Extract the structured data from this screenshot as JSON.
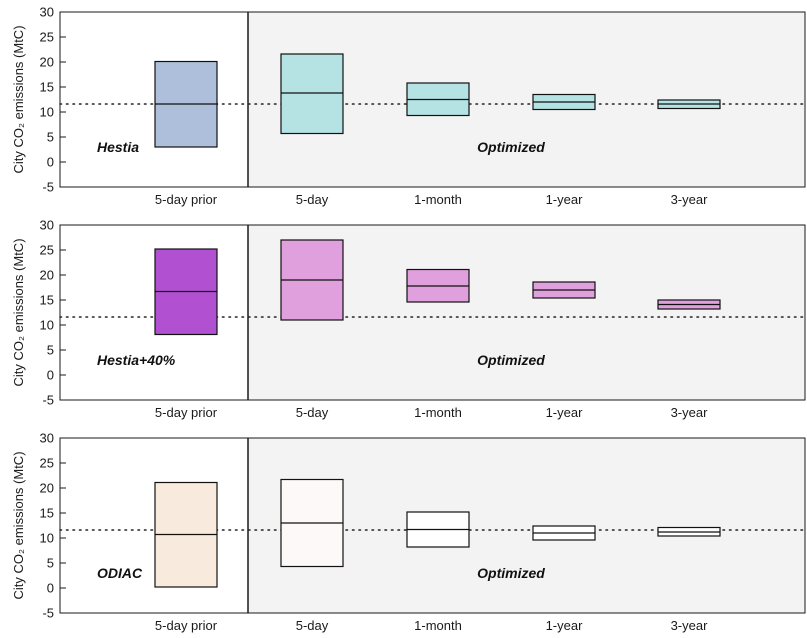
{
  "chart_data": [
    {
      "type": "box",
      "panel_label": "Hestia",
      "optimized_label": "Optimized",
      "ylabel": "City CO₂ emissions (MtC)",
      "ylim": [
        -5,
        30
      ],
      "yticks": [
        -5,
        0,
        5,
        10,
        15,
        20,
        25,
        30
      ],
      "reference_line": 11.6,
      "categories": [
        "5-day prior",
        "5-day",
        "1-month",
        "1-year",
        "3-year"
      ],
      "boxes": [
        {
          "low": 3.0,
          "median": 11.6,
          "high": 20.1,
          "color": "#aebfdb"
        },
        {
          "low": 5.7,
          "median": 13.8,
          "high": 21.6,
          "color": "#b5e3e3"
        },
        {
          "low": 9.3,
          "median": 12.5,
          "high": 15.8,
          "color": "#b5e3e3"
        },
        {
          "low": 10.5,
          "median": 12.0,
          "high": 13.5,
          "color": "#b5e3e3"
        },
        {
          "low": 10.7,
          "median": 11.6,
          "high": 12.4,
          "color": "#b5e3e3"
        }
      ]
    },
    {
      "type": "box",
      "panel_label": "Hestia+40%",
      "optimized_label": "Optimized",
      "ylabel": "City CO₂ emissions (MtC)",
      "ylim": [
        -5,
        30
      ],
      "yticks": [
        -5,
        0,
        5,
        10,
        15,
        20,
        25,
        30
      ],
      "reference_line": 11.6,
      "categories": [
        "5-day prior",
        "5-day",
        "1-month",
        "1-year",
        "3-year"
      ],
      "boxes": [
        {
          "low": 8.1,
          "median": 16.7,
          "high": 25.2,
          "color": "#b150d0"
        },
        {
          "low": 11.0,
          "median": 19.0,
          "high": 27.0,
          "color": "#dfa0dd"
        },
        {
          "low": 14.6,
          "median": 17.8,
          "high": 21.1,
          "color": "#dfa0dd"
        },
        {
          "low": 15.4,
          "median": 17.0,
          "high": 18.6,
          "color": "#dfa0dd"
        },
        {
          "low": 13.2,
          "median": 14.1,
          "high": 15.0,
          "color": "#dfa0dd"
        }
      ]
    },
    {
      "type": "box",
      "panel_label": "ODIAC",
      "optimized_label": "Optimized",
      "ylabel": "City CO₂ emissions (MtC)",
      "ylim": [
        -5,
        30
      ],
      "yticks": [
        -5,
        0,
        5,
        10,
        15,
        20,
        25,
        30
      ],
      "reference_line": 11.6,
      "categories": [
        "5-day prior",
        "5-day",
        "1-month",
        "1-year",
        "3-year"
      ],
      "boxes": [
        {
          "low": 0.2,
          "median": 10.7,
          "high": 21.1,
          "color": "#f8eadc"
        },
        {
          "low": 4.3,
          "median": 13.0,
          "high": 21.7,
          "color": "#fdf9f8"
        },
        {
          "low": 8.2,
          "median": 11.7,
          "high": 15.2,
          "color": "#ffffff"
        },
        {
          "low": 9.6,
          "median": 11.0,
          "high": 12.4,
          "color": "#ffffff"
        },
        {
          "low": 10.4,
          "median": 11.2,
          "high": 12.1,
          "color": "#ffffff"
        }
      ]
    }
  ],
  "colors": {
    "optimized_background": "#f3f3f3",
    "axis": "#1a1a1a"
  }
}
